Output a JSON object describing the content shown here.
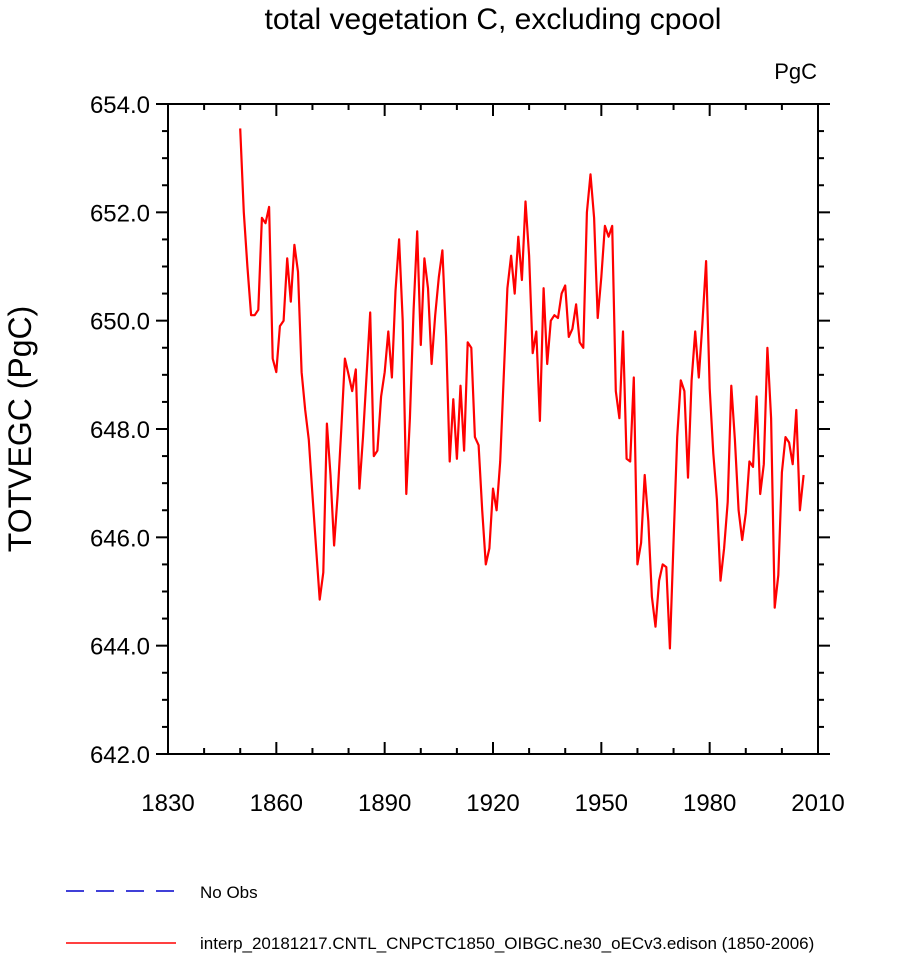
{
  "chart_data": {
    "type": "line",
    "title": "total vegetation C, excluding cpool",
    "units": "PgC",
    "ylabel": "TOTVEGC  (PgC)",
    "xlabel": "",
    "xlim": [
      1830,
      2010
    ],
    "ylim": [
      642,
      654
    ],
    "x_ticks": [
      1830,
      1860,
      1890,
      1920,
      1950,
      1980,
      2010
    ],
    "x_tick_labels": [
      "1830",
      "1860",
      "1890",
      "1920",
      "1950",
      "1980",
      "2010"
    ],
    "y_ticks": [
      642,
      644,
      646,
      648,
      650,
      652,
      654
    ],
    "y_tick_labels": [
      "642.0",
      "644.0",
      "646.0",
      "648.0",
      "650.0",
      "652.0",
      "654.0"
    ],
    "grid": false,
    "legend_position": "bottom-left",
    "series": [
      {
        "name": "No Obs",
        "color": "#0000cc",
        "dash": "dashed",
        "x": [],
        "values": []
      },
      {
        "name": "interp_20181217.CNTL_CNPCTC1850_OIBGC.ne30_oECv3.edison (1850-2006)",
        "color": "#ff0000",
        "dash": "solid",
        "x": [
          1850,
          1851,
          1852,
          1853,
          1854,
          1855,
          1856,
          1857,
          1858,
          1859,
          1860,
          1861,
          1862,
          1863,
          1864,
          1865,
          1866,
          1867,
          1868,
          1869,
          1870,
          1871,
          1872,
          1873,
          1874,
          1875,
          1876,
          1877,
          1878,
          1879,
          1880,
          1881,
          1882,
          1883,
          1884,
          1885,
          1886,
          1887,
          1888,
          1889,
          1890,
          1891,
          1892,
          1893,
          1894,
          1895,
          1896,
          1897,
          1898,
          1899,
          1900,
          1901,
          1902,
          1903,
          1904,
          1905,
          1906,
          1907,
          1908,
          1909,
          1910,
          1911,
          1912,
          1913,
          1914,
          1915,
          1916,
          1917,
          1918,
          1919,
          1920,
          1921,
          1922,
          1923,
          1924,
          1925,
          1926,
          1927,
          1928,
          1929,
          1930,
          1931,
          1932,
          1933,
          1934,
          1935,
          1936,
          1937,
          1938,
          1939,
          1940,
          1941,
          1942,
          1943,
          1944,
          1945,
          1946,
          1947,
          1948,
          1949,
          1950,
          1951,
          1952,
          1953,
          1954,
          1955,
          1956,
          1957,
          1958,
          1959,
          1960,
          1961,
          1962,
          1963,
          1964,
          1965,
          1966,
          1967,
          1968,
          1969,
          1970,
          1971,
          1972,
          1973,
          1974,
          1975,
          1976,
          1977,
          1978,
          1979,
          1980,
          1981,
          1982,
          1983,
          1984,
          1985,
          1986,
          1987,
          1988,
          1989,
          1990,
          1991,
          1992,
          1993,
          1994,
          1995,
          1996,
          1997,
          1998,
          1999,
          2000,
          2001,
          2002,
          2003,
          2004,
          2005,
          2006
        ],
        "values": [
          653.55,
          652.0,
          651.0,
          650.1,
          650.1,
          650.2,
          651.9,
          651.8,
          652.1,
          649.3,
          649.05,
          649.9,
          650.0,
          651.15,
          650.35,
          651.4,
          650.9,
          649.05,
          648.35,
          647.8,
          646.8,
          645.8,
          644.85,
          645.35,
          648.1,
          647.15,
          645.85,
          646.8,
          648.0,
          649.3,
          649.0,
          648.7,
          649.1,
          646.9,
          647.85,
          649.0,
          650.15,
          647.5,
          647.6,
          648.6,
          649.05,
          649.8,
          648.95,
          650.55,
          651.5,
          650.0,
          646.8,
          648.2,
          650.2,
          651.65,
          649.55,
          651.15,
          650.6,
          649.2,
          650.1,
          650.8,
          651.3,
          649.7,
          647.4,
          648.55,
          647.45,
          648.8,
          647.6,
          649.6,
          649.5,
          647.85,
          647.7,
          646.5,
          645.5,
          645.8,
          646.9,
          646.5,
          647.4,
          649.0,
          650.6,
          651.2,
          650.5,
          651.55,
          650.75,
          652.2,
          651.2,
          649.4,
          649.8,
          648.15,
          650.6,
          649.2,
          650.0,
          650.1,
          650.05,
          650.5,
          650.65,
          649.7,
          649.85,
          650.3,
          649.6,
          649.5,
          652.0,
          652.7,
          651.9,
          650.05,
          650.8,
          651.75,
          651.55,
          651.75,
          648.7,
          648.2,
          649.8,
          647.45,
          647.4,
          648.95,
          645.5,
          645.9,
          647.15,
          646.3,
          644.9,
          644.35,
          645.2,
          645.5,
          645.45,
          643.95,
          645.95,
          647.85,
          648.9,
          648.7,
          647.1,
          648.9,
          649.8,
          648.95,
          649.95,
          651.1,
          648.75,
          647.55,
          646.7,
          645.2,
          645.8,
          646.65,
          648.8,
          647.8,
          646.5,
          645.95,
          646.45,
          647.4,
          647.3,
          648.6,
          646.8,
          647.35,
          649.5,
          648.2,
          644.7,
          645.3,
          647.2,
          647.85,
          647.75,
          647.35,
          648.35,
          646.5,
          647.15
        ]
      }
    ]
  }
}
